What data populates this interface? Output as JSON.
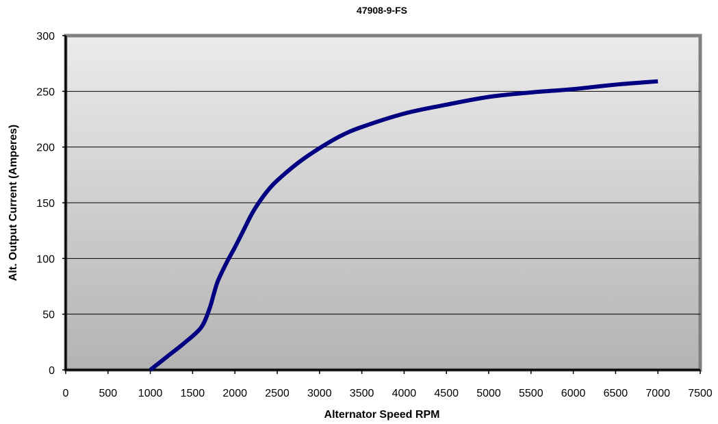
{
  "chart_data": {
    "type": "line",
    "title": "47908-9-FS",
    "xlabel": "Alternator Speed RPM",
    "ylabel": "Alt. Output Current (Amperes)",
    "xlim": [
      0,
      7500
    ],
    "ylim": [
      0,
      300
    ],
    "x_ticks": [
      "0",
      "500",
      "1000",
      "1500",
      "2000",
      "2500",
      "3000",
      "3500",
      "4000",
      "4500",
      "5000",
      "5500",
      "6000",
      "6500",
      "7000",
      "7500"
    ],
    "y_ticks": [
      "0",
      "50",
      "100",
      "150",
      "200",
      "250",
      "300"
    ],
    "grid": "horizontal",
    "legend": "none",
    "series": [
      {
        "color": "#000080",
        "x": [
          1000,
          1200,
          1400,
          1600,
          1700,
          1750,
          1800,
          1900,
          2000,
          2100,
          2200,
          2300,
          2400,
          2500,
          2750,
          3000,
          3250,
          3500,
          4000,
          4500,
          5000,
          5500,
          6000,
          6500,
          7000
        ],
        "y": [
          0,
          12,
          24,
          38,
          55,
          68,
          80,
          96,
          110,
          125,
          140,
          152,
          162,
          170,
          186,
          199,
          210,
          218,
          230,
          238,
          245,
          249,
          252,
          256,
          259
        ]
      }
    ],
    "colors": {
      "plot_bg_top": "#ebebeb",
      "plot_bg_bottom": "#b3b3b3",
      "frame": "#808080",
      "axis": "#000000",
      "gridline": "#000000"
    }
  }
}
